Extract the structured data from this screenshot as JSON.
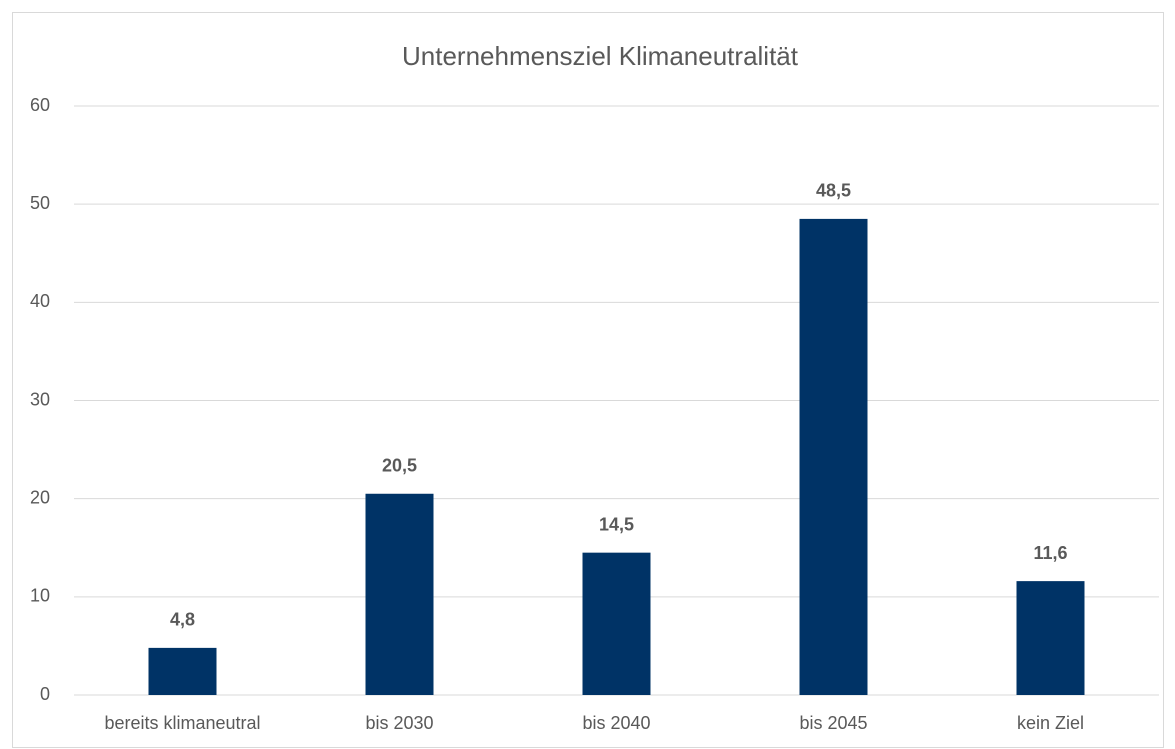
{
  "chart_data": {
    "type": "bar",
    "title": "Unternehmensziel Klimaneutralität",
    "categories": [
      "bereits klimaneutral",
      "bis 2030",
      "bis 2040",
      "bis 2045",
      "kein Ziel"
    ],
    "values": [
      4.8,
      20.5,
      14.5,
      48.5,
      11.6
    ],
    "value_labels": [
      "4,8",
      "20,5",
      "14,5",
      "48,5",
      "11,6"
    ],
    "color": "#003366",
    "ylim": [
      0,
      60
    ],
    "yticks": [
      0,
      10,
      20,
      30,
      40,
      50,
      60
    ],
    "grid": true
  }
}
